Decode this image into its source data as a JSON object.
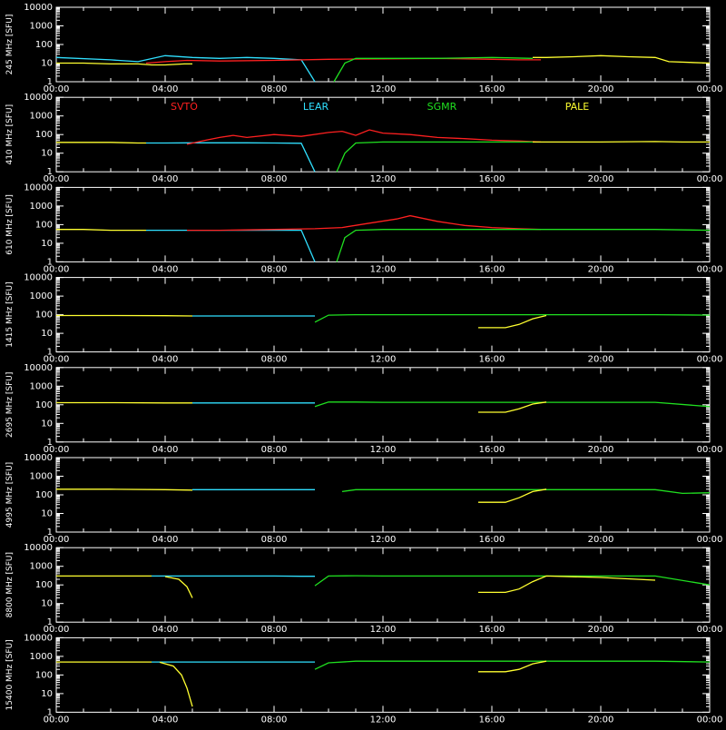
{
  "chart_data": {
    "type": "line",
    "time_axis": {
      "ticks": [
        "00:00",
        "04:00",
        "08:00",
        "12:00",
        "16:00",
        "20:00",
        "00:00"
      ],
      "range_hours": [
        0,
        24
      ]
    },
    "y_axis": {
      "scale": "log",
      "range": [
        1,
        10000
      ],
      "ticks": [
        "1",
        "10",
        "100",
        "1000",
        "10000"
      ],
      "unit": "[SFU]"
    },
    "grid": false,
    "legend": {
      "placement": "top (second panel)",
      "entries": [
        {
          "name": "SVTO",
          "color": "#ff2020"
        },
        {
          "name": "LEAR",
          "color": "#30e0ff"
        },
        {
          "name": "SGMR",
          "color": "#20e020"
        },
        {
          "name": "PALE",
          "color": "#ffff30"
        }
      ]
    },
    "panels": [
      {
        "ylabel": "245 MHz",
        "series": [
          {
            "name": "PALE",
            "x": [
              0,
              1,
              2,
              3,
              3.5,
              4,
              4.7,
              5
            ],
            "y": [
              10,
              10,
              9,
              9,
              8,
              8,
              9,
              9
            ]
          },
          {
            "name": "LEAR",
            "x": [
              0,
              2,
              3,
              4,
              5,
              6,
              7,
              8,
              9,
              9.5
            ],
            "y": [
              20,
              15,
              12,
              25,
              20,
              18,
              20,
              18,
              15,
              1
            ]
          },
          {
            "name": "SVTO",
            "x": [
              3.3,
              4,
              4.8,
              6,
              8,
              10,
              12,
              14,
              16,
              17,
              17.8
            ],
            "y": [
              10,
              12,
              14,
              13,
              14,
              16,
              17,
              18,
              16,
              15,
              15
            ]
          },
          {
            "name": "SGMR",
            "x": [
              10.2,
              10.6,
              11,
              12,
              14,
              16,
              17.5
            ],
            "y": [
              1,
              10,
              18,
              18,
              18,
              20,
              18
            ]
          },
          {
            "name": "PALE",
            "x": [
              17.5,
              18,
              19,
              20,
              21,
              22,
              22.5,
              24
            ],
            "y": [
              20,
              20,
              22,
              25,
              22,
              20,
              12,
              10
            ]
          }
        ]
      },
      {
        "ylabel": "410 MHz",
        "series": [
          {
            "name": "PALE",
            "x": [
              0,
              1,
              2,
              3,
              3.3
            ],
            "y": [
              38,
              38,
              38,
              35,
              35
            ]
          },
          {
            "name": "LEAR",
            "x": [
              3.3,
              4,
              5,
              6,
              7,
              8,
              9,
              9.5
            ],
            "y": [
              35,
              35,
              36,
              36,
              36,
              35,
              34,
              1
            ]
          },
          {
            "name": "SVTO",
            "x": [
              4.8,
              5.5,
              6,
              6.5,
              7,
              8,
              9,
              10,
              10.5,
              11,
              11.5,
              12,
              13,
              14,
              15,
              16,
              17,
              17.8
            ],
            "y": [
              30,
              50,
              70,
              90,
              70,
              100,
              80,
              130,
              150,
              90,
              180,
              120,
              100,
              70,
              60,
              50,
              45,
              40
            ]
          },
          {
            "name": "SGMR",
            "x": [
              10.3,
              10.6,
              11,
              12,
              14,
              16,
              17.5
            ],
            "y": [
              1,
              10,
              35,
              40,
              40,
              40,
              40
            ]
          },
          {
            "name": "PALE",
            "x": [
              17.5,
              18,
              20,
              22,
              23,
              24
            ],
            "y": [
              40,
              40,
              40,
              42,
              40,
              40
            ]
          }
        ]
      },
      {
        "ylabel": "610 MHz",
        "series": [
          {
            "name": "PALE",
            "x": [
              0,
              1,
              2,
              3.3
            ],
            "y": [
              55,
              55,
              50,
              50
            ]
          },
          {
            "name": "LEAR",
            "x": [
              3.3,
              4,
              5,
              6,
              7,
              8,
              9,
              9.5
            ],
            "y": [
              50,
              50,
              50,
              50,
              50,
              50,
              50,
              1
            ]
          },
          {
            "name": "SVTO",
            "x": [
              4.8,
              6,
              8,
              9.5,
              10.5,
              11.5,
              12.5,
              13,
              14,
              15,
              16,
              17,
              17.8
            ],
            "y": [
              50,
              50,
              55,
              60,
              70,
              120,
              200,
              300,
              150,
              90,
              70,
              60,
              55
            ]
          },
          {
            "name": "SGMR",
            "x": [
              10.3,
              10.6,
              11,
              12,
              14,
              16,
              18,
              20,
              22,
              24
            ],
            "y": [
              1,
              20,
              50,
              55,
              55,
              55,
              55,
              55,
              55,
              50
            ]
          }
        ]
      },
      {
        "ylabel": "1415 MHz",
        "series": [
          {
            "name": "PALE",
            "x": [
              0,
              2,
              4,
              5
            ],
            "y": [
              90,
              90,
              88,
              85
            ]
          },
          {
            "name": "LEAR",
            "x": [
              5,
              6,
              7,
              8,
              9,
              9.5
            ],
            "y": [
              85,
              85,
              85,
              85,
              85,
              85
            ]
          },
          {
            "name": "SGMR",
            "x": [
              9.5,
              10,
              11,
              12,
              14,
              16,
              18,
              20,
              22,
              24
            ],
            "y": [
              40,
              95,
              100,
              100,
              100,
              100,
              100,
              100,
              100,
              95
            ]
          },
          {
            "name": "PALE",
            "x": [
              15.5,
              16.5,
              17,
              17.5,
              18
            ],
            "y": [
              20,
              20,
              30,
              60,
              90
            ]
          }
        ]
      },
      {
        "ylabel": "2695 MHz",
        "series": [
          {
            "name": "PALE",
            "x": [
              0,
              2,
              4,
              5
            ],
            "y": [
              130,
              130,
              125,
              125
            ]
          },
          {
            "name": "LEAR",
            "x": [
              5,
              6,
              7,
              8,
              9,
              9.5
            ],
            "y": [
              125,
              125,
              125,
              125,
              125,
              125
            ]
          },
          {
            "name": "SGMR",
            "x": [
              9.5,
              10,
              11,
              12,
              14,
              16,
              18,
              20,
              22,
              24
            ],
            "y": [
              80,
              140,
              140,
              135,
              135,
              135,
              135,
              135,
              135,
              80
            ]
          },
          {
            "name": "PALE",
            "x": [
              15.5,
              16.5,
              17,
              17.5,
              18
            ],
            "y": [
              40,
              40,
              60,
              110,
              140
            ]
          }
        ]
      },
      {
        "ylabel": "4995 MHz",
        "series": [
          {
            "name": "PALE",
            "x": [
              0,
              2,
              4,
              5
            ],
            "y": [
              200,
              200,
              190,
              180
            ]
          },
          {
            "name": "LEAR",
            "x": [
              5,
              6,
              7,
              8,
              9,
              9.5
            ],
            "y": [
              190,
              190,
              190,
              190,
              190,
              190
            ]
          },
          {
            "name": "SGMR",
            "x": [
              10.5,
              11,
              12,
              14,
              16,
              18,
              20,
              22,
              23,
              24
            ],
            "y": [
              150,
              190,
              190,
              190,
              190,
              190,
              190,
              190,
              120,
              130
            ]
          },
          {
            "name": "PALE",
            "x": [
              15.5,
              16.5,
              17,
              17.5,
              18
            ],
            "y": [
              40,
              40,
              70,
              150,
              200
            ]
          }
        ]
      },
      {
        "ylabel": "8800 MHz",
        "series": [
          {
            "name": "PALE",
            "x": [
              0,
              2,
              3.5
            ],
            "y": [
              300,
              300,
              300
            ]
          },
          {
            "name": "LEAR",
            "x": [
              3.5,
              4,
              5,
              6,
              7,
              8,
              9,
              9.5
            ],
            "y": [
              300,
              300,
              300,
              300,
              300,
              300,
              290,
              290
            ]
          },
          {
            "name": "PALE",
            "x": [
              4,
              4.5,
              4.8,
              5
            ],
            "y": [
              280,
              200,
              80,
              20
            ]
          },
          {
            "name": "SGMR",
            "x": [
              9.5,
              10,
              11,
              12,
              14,
              16,
              18,
              20,
              22,
              24
            ],
            "y": [
              90,
              300,
              310,
              300,
              300,
              300,
              300,
              300,
              300,
              100
            ]
          },
          {
            "name": "PALE",
            "x": [
              15.5,
              16.5,
              17,
              17.5,
              18,
              20,
              22
            ],
            "y": [
              40,
              40,
              60,
              150,
              300,
              250,
              180
            ]
          }
        ]
      },
      {
        "ylabel": "15400 MHz",
        "series": [
          {
            "name": "PALE",
            "x": [
              0,
              2,
              3.5
            ],
            "y": [
              500,
              500,
              500
            ]
          },
          {
            "name": "LEAR",
            "x": [
              3.5,
              5,
              6,
              7,
              8,
              9,
              9.5
            ],
            "y": [
              500,
              500,
              500,
              500,
              500,
              500,
              500
            ]
          },
          {
            "name": "PALE",
            "x": [
              3.8,
              4.3,
              4.6,
              4.8,
              5
            ],
            "y": [
              480,
              300,
              100,
              20,
              2
            ]
          },
          {
            "name": "SGMR",
            "x": [
              9.5,
              10,
              11,
              12,
              14,
              16,
              18,
              20,
              22,
              24
            ],
            "y": [
              200,
              450,
              550,
              550,
              550,
              550,
              550,
              550,
              550,
              500
            ]
          },
          {
            "name": "PALE",
            "x": [
              15.5,
              16.5,
              17,
              17.5,
              18
            ],
            "y": [
              150,
              150,
              200,
              400,
              550
            ]
          }
        ]
      }
    ]
  }
}
